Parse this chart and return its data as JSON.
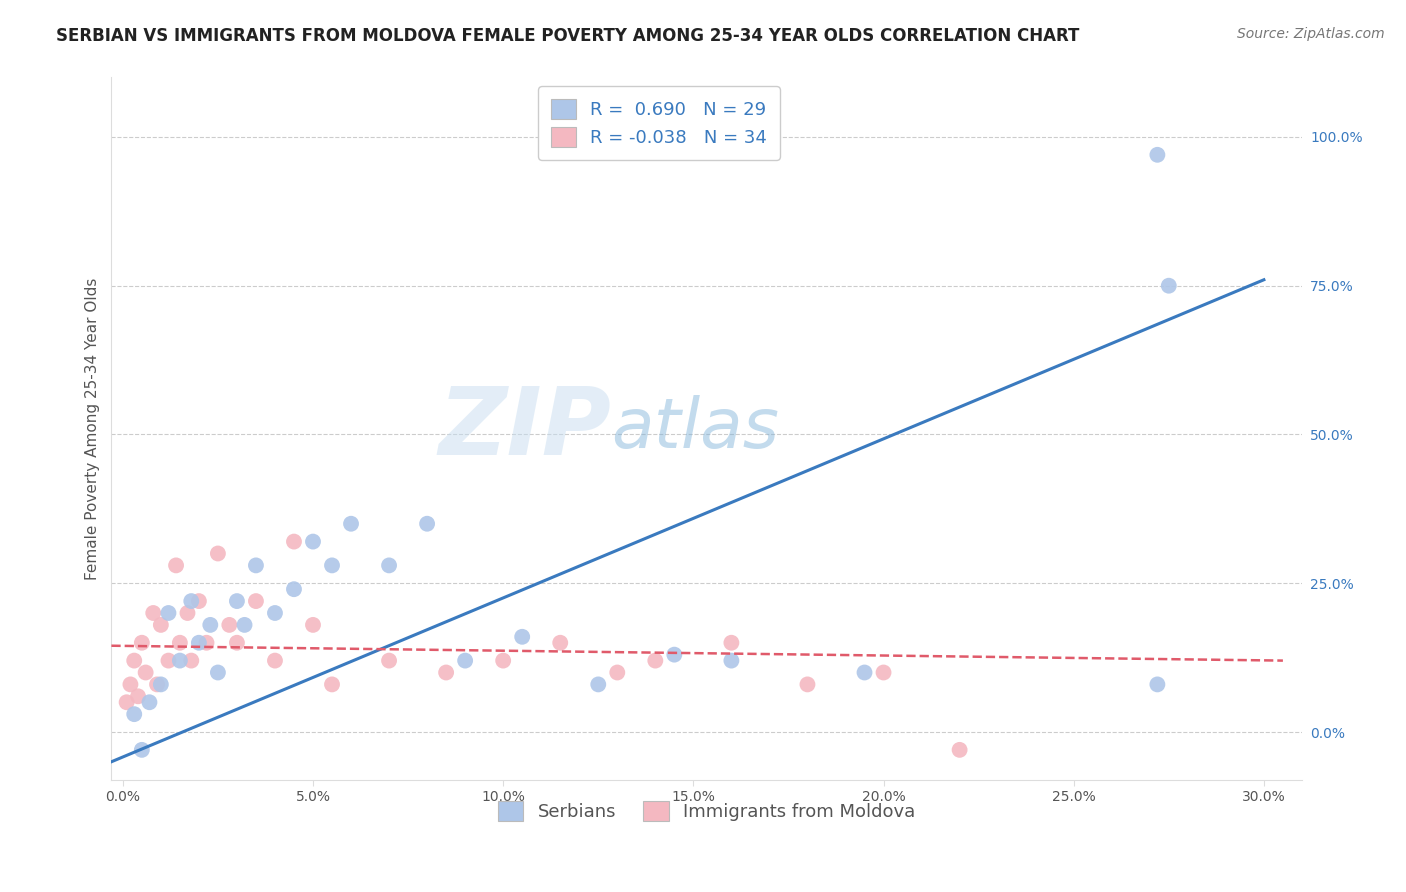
{
  "title": "SERBIAN VS IMMIGRANTS FROM MOLDOVA FEMALE POVERTY AMONG 25-34 YEAR OLDS CORRELATION CHART",
  "source": "Source: ZipAtlas.com",
  "ylabel": "Female Poverty Among 25-34 Year Olds",
  "xlabel_ticks": [
    "0.0%",
    "5.0%",
    "10.0%",
    "15.0%",
    "20.0%",
    "25.0%",
    "30.0%"
  ],
  "xlabel_vals": [
    0.0,
    5.0,
    10.0,
    15.0,
    20.0,
    25.0,
    30.0
  ],
  "ylabel_ticks": [
    "0.0%",
    "25.0%",
    "50.0%",
    "75.0%",
    "100.0%"
  ],
  "ylabel_vals": [
    0.0,
    25.0,
    50.0,
    75.0,
    100.0
  ],
  "xlim": [
    -0.3,
    31.0
  ],
  "ylim": [
    -8.0,
    110.0
  ],
  "R_serbian": 0.69,
  "N_serbian": 29,
  "R_moldova": -0.038,
  "N_moldova": 34,
  "serbian_color": "#aec6e8",
  "moldova_color": "#f4b8c1",
  "trendline_serbian_color": "#3a7abf",
  "trendline_moldova_color": "#e05a6a",
  "legend_label_serbian": "Serbians",
  "legend_label_moldova": "Immigrants from Moldova",
  "watermark_zip": "ZIP",
  "watermark_atlas": "atlas",
  "serbian_x": [
    0.3,
    0.5,
    0.7,
    1.0,
    1.2,
    1.5,
    1.8,
    2.0,
    2.3,
    2.5,
    3.0,
    3.2,
    3.5,
    4.0,
    4.5,
    5.0,
    5.5,
    6.0,
    7.0,
    8.0,
    9.0,
    10.5,
    12.5,
    14.5,
    16.0,
    19.5,
    27.2,
    27.2,
    27.5
  ],
  "serbian_y": [
    3.0,
    -3.0,
    5.0,
    8.0,
    20.0,
    12.0,
    22.0,
    15.0,
    18.0,
    10.0,
    22.0,
    18.0,
    28.0,
    20.0,
    24.0,
    32.0,
    28.0,
    35.0,
    28.0,
    35.0,
    12.0,
    16.0,
    8.0,
    13.0,
    12.0,
    10.0,
    8.0,
    97.0,
    75.0
  ],
  "moldova_x": [
    0.1,
    0.2,
    0.3,
    0.4,
    0.5,
    0.6,
    0.8,
    0.9,
    1.0,
    1.2,
    1.4,
    1.5,
    1.7,
    1.8,
    2.0,
    2.2,
    2.5,
    2.8,
    3.0,
    3.5,
    4.0,
    4.5,
    5.0,
    5.5,
    7.0,
    8.5,
    10.0,
    11.5,
    13.0,
    14.0,
    16.0,
    18.0,
    20.0,
    22.0
  ],
  "moldova_y": [
    5.0,
    8.0,
    12.0,
    6.0,
    15.0,
    10.0,
    20.0,
    8.0,
    18.0,
    12.0,
    28.0,
    15.0,
    20.0,
    12.0,
    22.0,
    15.0,
    30.0,
    18.0,
    15.0,
    22.0,
    12.0,
    32.0,
    18.0,
    8.0,
    12.0,
    10.0,
    12.0,
    15.0,
    10.0,
    12.0,
    15.0,
    8.0,
    10.0,
    -3.0
  ],
  "trendline_serbian_x0": -0.3,
  "trendline_serbian_y0": -5.0,
  "trendline_serbian_x1": 30.0,
  "trendline_serbian_y1": 76.0,
  "trendline_moldova_x0": -0.3,
  "trendline_moldova_y0": 14.5,
  "trendline_moldova_x1": 30.5,
  "trendline_moldova_y1": 12.0,
  "title_fontsize": 12,
  "axis_label_fontsize": 11,
  "tick_fontsize": 10,
  "legend_fontsize": 13,
  "source_fontsize": 10
}
